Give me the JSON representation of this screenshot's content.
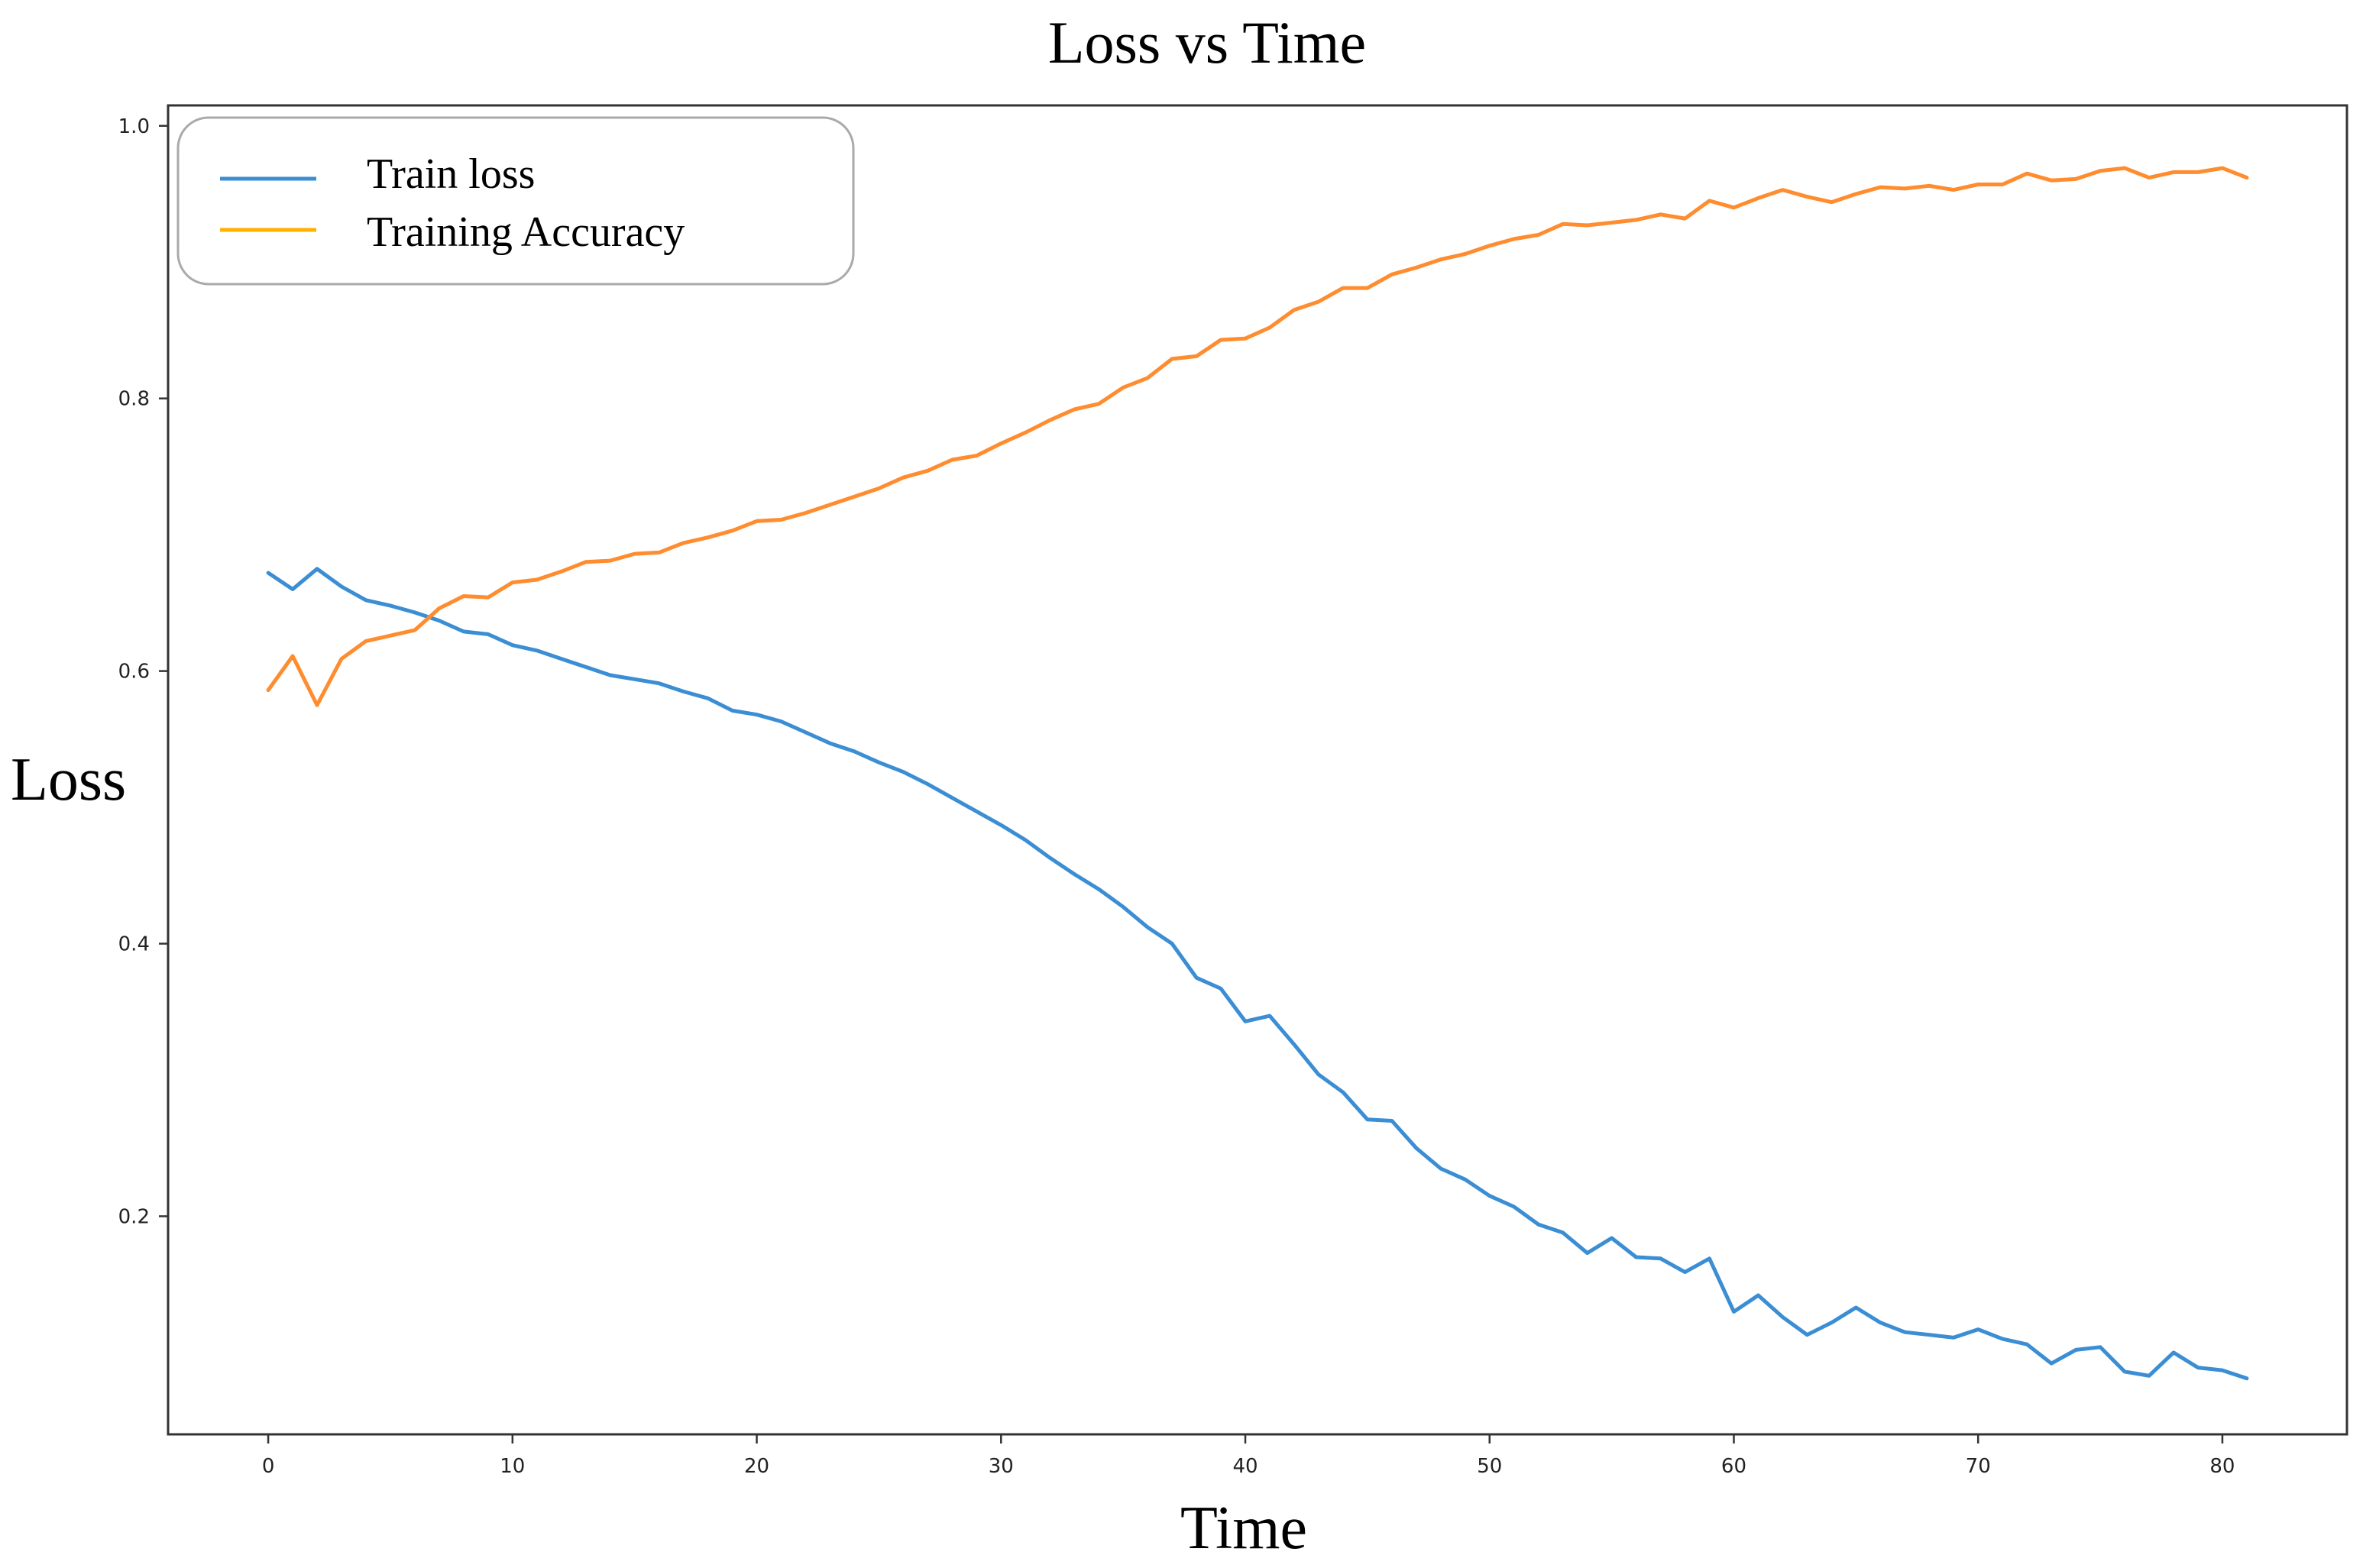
{
  "chart_data": {
    "type": "line",
    "title": "Loss vs Time",
    "xlabel": "Time",
    "ylabel": "Loss",
    "xlim": [
      -4.1,
      85.1
    ],
    "ylim": [
      0.04,
      1.015
    ],
    "xticks": [
      0,
      10,
      20,
      30,
      40,
      50,
      60,
      70,
      80
    ],
    "yticks": [
      0.2,
      0.4,
      0.6,
      0.8,
      1.0
    ],
    "ytick_labels": [
      "0.2",
      "0.4",
      "0.6",
      "0.8",
      "1.0"
    ],
    "grid": false,
    "legend_position": "top-left",
    "x": [
      0,
      1,
      2,
      3,
      4,
      5,
      6,
      7,
      8,
      9,
      10,
      11,
      12,
      13,
      14,
      15,
      16,
      17,
      18,
      19,
      20,
      21,
      22,
      23,
      24,
      25,
      26,
      27,
      28,
      29,
      30,
      31,
      32,
      33,
      34,
      35,
      36,
      37,
      38,
      39,
      40,
      41,
      42,
      43,
      44,
      45,
      46,
      47,
      48,
      49,
      50,
      51,
      52,
      53,
      54,
      55,
      56,
      57,
      58,
      59,
      60,
      61,
      62,
      63,
      64,
      65,
      66,
      67,
      68,
      69,
      70,
      71,
      72,
      73,
      74,
      75,
      76,
      77,
      78,
      79,
      80,
      81
    ],
    "series": [
      {
        "name": "Train loss",
        "color": "#3b8ed4",
        "legend_color": "#3b8ed4",
        "values": [
          0.672,
          0.66,
          0.675,
          0.662,
          0.652,
          0.648,
          0.643,
          0.637,
          0.629,
          0.627,
          0.619,
          0.615,
          0.609,
          0.603,
          0.597,
          0.594,
          0.591,
          0.585,
          0.58,
          0.571,
          0.568,
          0.563,
          0.555,
          0.547,
          0.541,
          0.533,
          0.526,
          0.517,
          0.507,
          0.497,
          0.487,
          0.476,
          0.463,
          0.451,
          0.44,
          0.427,
          0.412,
          0.4,
          0.375,
          0.367,
          0.343,
          0.347,
          0.326,
          0.304,
          0.291,
          0.271,
          0.27,
          0.25,
          0.235,
          0.227,
          0.215,
          0.207,
          0.194,
          0.188,
          0.173,
          0.184,
          0.17,
          0.169,
          0.159,
          0.169,
          0.13,
          0.142,
          0.126,
          0.113,
          0.122,
          0.133,
          0.122,
          0.115,
          0.113,
          0.111,
          0.117,
          0.11,
          0.106,
          0.092,
          0.102,
          0.104,
          0.086,
          0.083,
          0.1,
          0.089,
          0.087,
          0.081
        ]
      },
      {
        "name": "Training Accuracy",
        "color": "#ff8c2e",
        "legend_color": "#ffb000",
        "values": [
          0.586,
          0.611,
          0.575,
          0.609,
          0.622,
          0.626,
          0.63,
          0.646,
          0.655,
          0.654,
          0.665,
          0.667,
          0.673,
          0.68,
          0.681,
          0.686,
          0.687,
          0.694,
          0.698,
          0.703,
          0.71,
          0.711,
          0.716,
          0.722,
          0.728,
          0.734,
          0.742,
          0.747,
          0.755,
          0.758,
          0.767,
          0.775,
          0.784,
          0.792,
          0.796,
          0.808,
          0.815,
          0.829,
          0.831,
          0.843,
          0.844,
          0.852,
          0.865,
          0.871,
          0.881,
          0.881,
          0.891,
          0.896,
          0.902,
          0.906,
          0.912,
          0.917,
          0.92,
          0.928,
          0.927,
          0.929,
          0.931,
          0.935,
          0.932,
          0.945,
          0.94,
          0.947,
          0.953,
          0.948,
          0.944,
          0.95,
          0.955,
          0.954,
          0.956,
          0.953,
          0.957,
          0.957,
          0.965,
          0.96,
          0.961,
          0.967,
          0.969,
          0.962,
          0.966,
          0.966,
          0.969,
          0.962
        ]
      }
    ]
  }
}
